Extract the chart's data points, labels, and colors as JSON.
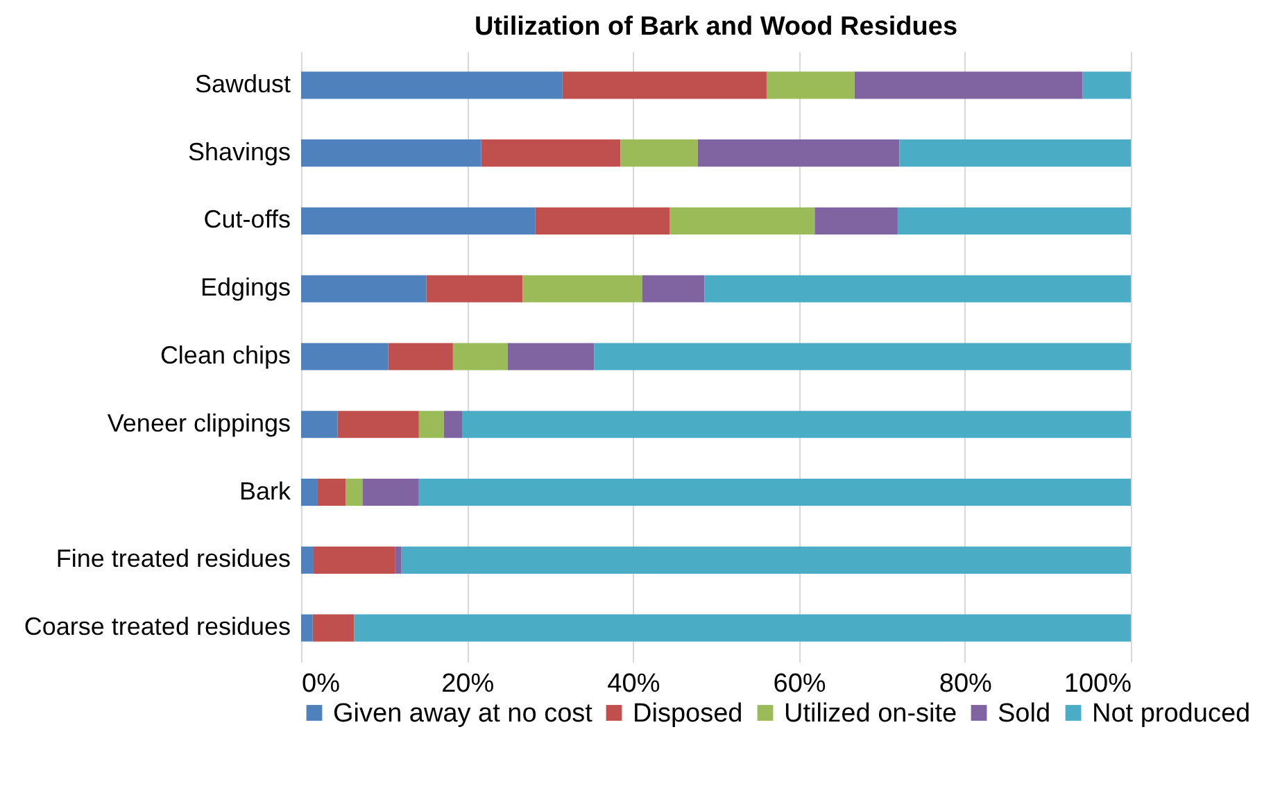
{
  "chart_data": {
    "type": "bar",
    "orientation": "horizontal",
    "stacked": true,
    "title": "Utilization of Bark and Wood Residues",
    "categories": [
      "Sawdust",
      "Shavings",
      "Cut-offs",
      "Edgings",
      "Clean chips",
      "Veneer clippings",
      "Bark",
      "Fine treated residues",
      "Coarse treated residues"
    ],
    "series": [
      {
        "name": "Given away at no cost",
        "color": "#4f81bd",
        "values": [
          31.5,
          21.7,
          28.2,
          15.1,
          10.5,
          4.4,
          2.0,
          1.5,
          1.4
        ]
      },
      {
        "name": "Disposed",
        "color": "#c0504d",
        "values": [
          24.6,
          16.8,
          16.2,
          11.6,
          7.8,
          9.8,
          3.4,
          9.8,
          5.0
        ]
      },
      {
        "name": "Utilized on-site",
        "color": "#9bbb59",
        "values": [
          10.6,
          9.3,
          17.5,
          14.4,
          6.6,
          3.0,
          2.0,
          0,
          0
        ]
      },
      {
        "name": "Sold",
        "color": "#8064a2",
        "values": [
          27.5,
          24.3,
          10.0,
          7.5,
          10.4,
          2.2,
          6.8,
          0.8,
          0
        ]
      },
      {
        "name": "Not produced",
        "color": "#4bacc6",
        "values": [
          5.8,
          27.9,
          28.1,
          51.4,
          64.7,
          80.6,
          85.8,
          87.9,
          93.6
        ]
      }
    ],
    "xlim": [
      0,
      100
    ],
    "xticks": [
      {
        "value": 0,
        "label": "0%"
      },
      {
        "value": 20,
        "label": "20%"
      },
      {
        "value": 40,
        "label": "40%"
      },
      {
        "value": 60,
        "label": "60%"
      },
      {
        "value": 80,
        "label": "80%"
      },
      {
        "value": 100,
        "label": "100%"
      }
    ],
    "grid": "x",
    "legend": "bottom"
  }
}
